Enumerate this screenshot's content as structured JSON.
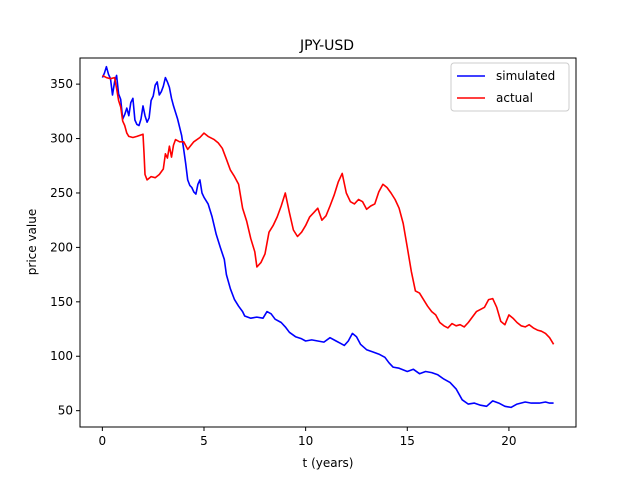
{
  "chart_data": {
    "type": "line",
    "title": "JPY-USD",
    "xlabel": "t (years)",
    "ylabel": "price value",
    "xlim": [
      -1.1,
      23.3
    ],
    "ylim": [
      35,
      374
    ],
    "x_ticks": [
      0,
      5,
      10,
      15,
      20
    ],
    "y_ticks": [
      50,
      100,
      150,
      200,
      250,
      300,
      350
    ],
    "grid": false,
    "legend_position": "top-right",
    "series": [
      {
        "name": "simulated",
        "color": "#0000ff",
        "points": [
          [
            0,
            356
          ],
          [
            0.1,
            360
          ],
          [
            0.2,
            366
          ],
          [
            0.3,
            359
          ],
          [
            0.4,
            355
          ],
          [
            0.5,
            340
          ],
          [
            0.6,
            352
          ],
          [
            0.7,
            358
          ],
          [
            0.8,
            341
          ],
          [
            0.9,
            336
          ],
          [
            1.0,
            318
          ],
          [
            1.1,
            322
          ],
          [
            1.2,
            328
          ],
          [
            1.3,
            321
          ],
          [
            1.4,
            333
          ],
          [
            1.5,
            337
          ],
          [
            1.6,
            317
          ],
          [
            1.7,
            313
          ],
          [
            1.8,
            312
          ],
          [
            1.9,
            318
          ],
          [
            2.0,
            330
          ],
          [
            2.1,
            321
          ],
          [
            2.2,
            315
          ],
          [
            2.3,
            319
          ],
          [
            2.4,
            335
          ],
          [
            2.5,
            339
          ],
          [
            2.6,
            349
          ],
          [
            2.7,
            352
          ],
          [
            2.8,
            340
          ],
          [
            2.9,
            343
          ],
          [
            3.0,
            348
          ],
          [
            3.1,
            356
          ],
          [
            3.2,
            352
          ],
          [
            3.3,
            347
          ],
          [
            3.4,
            337
          ],
          [
            3.5,
            330
          ],
          [
            3.7,
            318
          ],
          [
            3.9,
            303
          ],
          [
            4.0,
            290
          ],
          [
            4.1,
            277
          ],
          [
            4.2,
            262
          ],
          [
            4.3,
            257
          ],
          [
            4.4,
            255
          ],
          [
            4.5,
            251
          ],
          [
            4.6,
            249
          ],
          [
            4.7,
            258
          ],
          [
            4.8,
            262
          ],
          [
            4.9,
            250
          ],
          [
            5.0,
            246
          ],
          [
            5.2,
            240
          ],
          [
            5.4,
            228
          ],
          [
            5.6,
            212
          ],
          [
            5.8,
            200
          ],
          [
            6.0,
            189
          ],
          [
            6.1,
            175
          ],
          [
            6.3,
            162
          ],
          [
            6.5,
            152
          ],
          [
            6.7,
            146
          ],
          [
            6.9,
            141
          ],
          [
            7.0,
            137
          ],
          [
            7.3,
            135
          ],
          [
            7.6,
            136
          ],
          [
            7.9,
            135
          ],
          [
            8.1,
            141
          ],
          [
            8.3,
            139
          ],
          [
            8.5,
            134
          ],
          [
            8.8,
            131
          ],
          [
            9.0,
            127
          ],
          [
            9.2,
            122
          ],
          [
            9.5,
            118
          ],
          [
            9.8,
            116
          ],
          [
            10.0,
            114
          ],
          [
            10.3,
            115
          ],
          [
            10.6,
            114
          ],
          [
            10.9,
            113
          ],
          [
            11.2,
            117
          ],
          [
            11.5,
            114
          ],
          [
            11.7,
            112
          ],
          [
            11.9,
            110
          ],
          [
            12.1,
            114
          ],
          [
            12.3,
            121
          ],
          [
            12.5,
            118
          ],
          [
            12.7,
            111
          ],
          [
            13.0,
            106
          ],
          [
            13.3,
            104
          ],
          [
            13.6,
            102
          ],
          [
            13.9,
            99
          ],
          [
            14.1,
            94
          ],
          [
            14.3,
            90
          ],
          [
            14.6,
            89
          ],
          [
            15.0,
            86
          ],
          [
            15.3,
            88
          ],
          [
            15.6,
            84
          ],
          [
            15.9,
            86
          ],
          [
            16.2,
            85
          ],
          [
            16.5,
            83
          ],
          [
            16.8,
            79
          ],
          [
            17.1,
            76
          ],
          [
            17.4,
            70
          ],
          [
            17.7,
            60
          ],
          [
            18.0,
            56
          ],
          [
            18.3,
            57
          ],
          [
            18.6,
            55
          ],
          [
            18.9,
            54
          ],
          [
            19.2,
            59
          ],
          [
            19.5,
            57
          ],
          [
            19.8,
            54
          ],
          [
            20.1,
            53
          ],
          [
            20.4,
            56
          ],
          [
            20.8,
            58
          ],
          [
            21.1,
            57
          ],
          [
            21.5,
            57
          ],
          [
            21.8,
            58
          ],
          [
            22.0,
            57
          ],
          [
            22.2,
            57
          ]
        ]
      },
      {
        "name": "actual",
        "color": "#ff0000",
        "points": [
          [
            0,
            358
          ],
          [
            0.2,
            356
          ],
          [
            0.4,
            355
          ],
          [
            0.6,
            356
          ],
          [
            0.7,
            346
          ],
          [
            0.8,
            335
          ],
          [
            0.9,
            329
          ],
          [
            1.0,
            316
          ],
          [
            1.1,
            312
          ],
          [
            1.2,
            305
          ],
          [
            1.3,
            302
          ],
          [
            1.5,
            301
          ],
          [
            1.7,
            302
          ],
          [
            2.0,
            304
          ],
          [
            2.05,
            287
          ],
          [
            2.1,
            267
          ],
          [
            2.2,
            262
          ],
          [
            2.4,
            265
          ],
          [
            2.6,
            264
          ],
          [
            2.8,
            267
          ],
          [
            3.0,
            272
          ],
          [
            3.1,
            286
          ],
          [
            3.2,
            282
          ],
          [
            3.3,
            293
          ],
          [
            3.4,
            283
          ],
          [
            3.5,
            294
          ],
          [
            3.6,
            299
          ],
          [
            3.8,
            297
          ],
          [
            4.0,
            297
          ],
          [
            4.2,
            290
          ],
          [
            4.5,
            297
          ],
          [
            4.8,
            301
          ],
          [
            5.0,
            305
          ],
          [
            5.2,
            302
          ],
          [
            5.5,
            299
          ],
          [
            5.7,
            296
          ],
          [
            5.9,
            291
          ],
          [
            6.1,
            281
          ],
          [
            6.3,
            271
          ],
          [
            6.5,
            265
          ],
          [
            6.7,
            258
          ],
          [
            6.9,
            236
          ],
          [
            7.1,
            224
          ],
          [
            7.3,
            208
          ],
          [
            7.5,
            196
          ],
          [
            7.6,
            182
          ],
          [
            7.8,
            186
          ],
          [
            8.0,
            194
          ],
          [
            8.2,
            214
          ],
          [
            8.4,
            220
          ],
          [
            8.6,
            228
          ],
          [
            8.8,
            238
          ],
          [
            9.0,
            250
          ],
          [
            9.2,
            232
          ],
          [
            9.4,
            216
          ],
          [
            9.6,
            210
          ],
          [
            9.8,
            214
          ],
          [
            10.0,
            220
          ],
          [
            10.2,
            228
          ],
          [
            10.4,
            232
          ],
          [
            10.6,
            236
          ],
          [
            10.8,
            225
          ],
          [
            11.0,
            229
          ],
          [
            11.2,
            238
          ],
          [
            11.4,
            248
          ],
          [
            11.6,
            260
          ],
          [
            11.8,
            268
          ],
          [
            12.0,
            250
          ],
          [
            12.2,
            242
          ],
          [
            12.4,
            240
          ],
          [
            12.6,
            244
          ],
          [
            12.8,
            242
          ],
          [
            13.0,
            235
          ],
          [
            13.2,
            238
          ],
          [
            13.4,
            240
          ],
          [
            13.6,
            251
          ],
          [
            13.8,
            258
          ],
          [
            14.0,
            255
          ],
          [
            14.2,
            250
          ],
          [
            14.4,
            244
          ],
          [
            14.6,
            236
          ],
          [
            14.8,
            222
          ],
          [
            15.0,
            200
          ],
          [
            15.2,
            178
          ],
          [
            15.4,
            160
          ],
          [
            15.6,
            158
          ],
          [
            15.8,
            152
          ],
          [
            16.0,
            146
          ],
          [
            16.2,
            141
          ],
          [
            16.4,
            138
          ],
          [
            16.6,
            131
          ],
          [
            16.8,
            128
          ],
          [
            17.0,
            126
          ],
          [
            17.2,
            130
          ],
          [
            17.4,
            128
          ],
          [
            17.6,
            129
          ],
          [
            17.8,
            127
          ],
          [
            18.0,
            131
          ],
          [
            18.2,
            136
          ],
          [
            18.4,
            141
          ],
          [
            18.6,
            143
          ],
          [
            18.8,
            145
          ],
          [
            19.0,
            152
          ],
          [
            19.2,
            153
          ],
          [
            19.4,
            145
          ],
          [
            19.6,
            132
          ],
          [
            19.8,
            129
          ],
          [
            20.0,
            138
          ],
          [
            20.2,
            135
          ],
          [
            20.4,
            131
          ],
          [
            20.6,
            128
          ],
          [
            20.8,
            127
          ],
          [
            21.0,
            129
          ],
          [
            21.2,
            126
          ],
          [
            21.4,
            124
          ],
          [
            21.6,
            123
          ],
          [
            21.8,
            121
          ],
          [
            22.0,
            117
          ],
          [
            22.2,
            111
          ]
        ]
      }
    ]
  }
}
